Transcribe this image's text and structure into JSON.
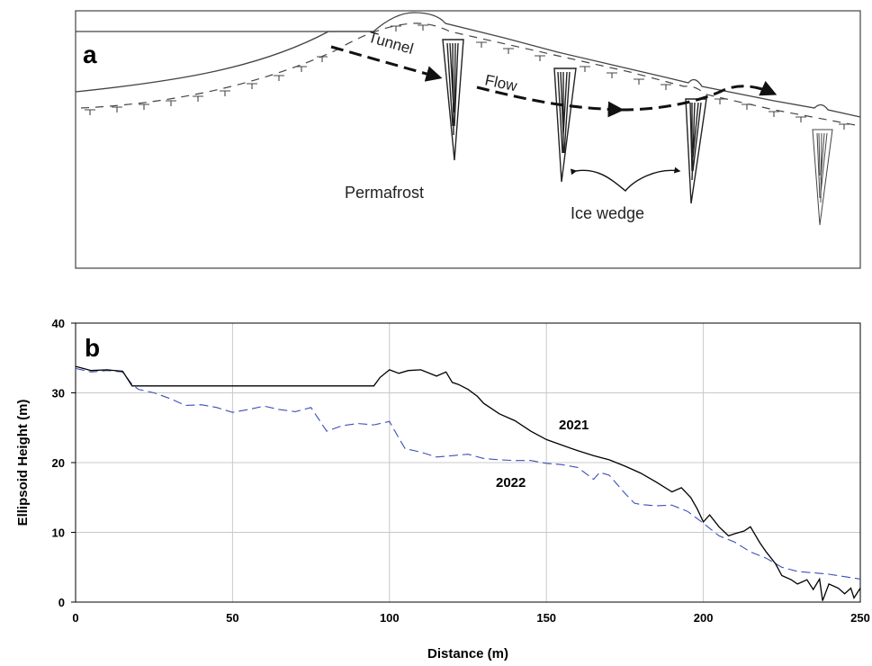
{
  "panel_a": {
    "letter": "a",
    "labels": {
      "tunnel": "Tunnel",
      "flow": "Flow",
      "permafrost": "Permafrost",
      "ice_wedge": "Ice wedge"
    }
  },
  "chart_data": {
    "type": "line",
    "panel_letter": "b",
    "xlabel": "Distance (m)",
    "ylabel": "Ellipsoid Height (m)",
    "xlim": [
      0,
      250
    ],
    "ylim": [
      0,
      40
    ],
    "xticks": [
      "0",
      "50",
      "100",
      "150",
      "200",
      "250"
    ],
    "yticks": [
      "0",
      "10",
      "20",
      "30",
      "40"
    ],
    "grid": true,
    "series": [
      {
        "name": "2021",
        "color": "#000000",
        "style": "solid",
        "x": [
          0,
          5,
          10,
          15,
          18,
          20,
          30,
          50,
          70,
          90,
          95,
          97,
          100,
          103,
          106,
          110,
          115,
          118,
          120,
          122,
          125,
          128,
          130,
          135,
          140,
          145,
          150,
          155,
          160,
          165,
          170,
          175,
          180,
          185,
          190,
          193,
          196,
          198,
          200,
          202,
          205,
          208,
          210,
          213,
          215,
          218,
          220,
          223,
          225,
          228,
          230,
          233,
          235,
          237,
          238,
          240,
          243,
          245,
          247,
          248,
          250
        ],
        "y": [
          33.8,
          33.2,
          33.3,
          33.1,
          31,
          31,
          31,
          31,
          31,
          31,
          31,
          32.2,
          33.3,
          32.8,
          33.2,
          33.3,
          32.4,
          33.0,
          31.5,
          31.2,
          30.5,
          29.5,
          28.5,
          27,
          26,
          24.5,
          23.3,
          22.5,
          21.7,
          21,
          20.4,
          19.5,
          18.5,
          17.2,
          15.8,
          16.4,
          15,
          13.4,
          11.5,
          12.5,
          10.8,
          9.5,
          9.8,
          10.2,
          10.8,
          8.5,
          7.2,
          5.5,
          3.8,
          3.2,
          2.6,
          3.2,
          1.8,
          3.3,
          0.2,
          2.6,
          2.0,
          1.2,
          2.0,
          0.6,
          2.0
        ]
      },
      {
        "name": "2022",
        "color": "#3b4fb8",
        "style": "dashed",
        "x": [
          0,
          5,
          10,
          15,
          18,
          20,
          25,
          30,
          35,
          40,
          45,
          50,
          55,
          60,
          65,
          70,
          75,
          80,
          85,
          90,
          95,
          100,
          103,
          105,
          110,
          115,
          120,
          125,
          130,
          135,
          140,
          145,
          150,
          155,
          160,
          165,
          167,
          170,
          175,
          178,
          180,
          185,
          190,
          195,
          200,
          205,
          210,
          215,
          220,
          225,
          230,
          240,
          250
        ],
        "y": [
          33.5,
          33.0,
          33.2,
          33.0,
          31.2,
          30.5,
          30.0,
          29.2,
          28.2,
          28.3,
          27.9,
          27.2,
          27.6,
          28.1,
          27.6,
          27.3,
          27.9,
          24.5,
          25.3,
          25.6,
          25.4,
          25.9,
          23.5,
          22,
          21.5,
          20.8,
          21.0,
          21.2,
          20.6,
          20.4,
          20.3,
          20.3,
          19.9,
          19.7,
          19.3,
          17.6,
          18.6,
          18.2,
          15.6,
          14.2,
          14.0,
          13.8,
          13.9,
          13.0,
          11.3,
          9.5,
          8.6,
          7.2,
          6.3,
          5.0,
          4.4,
          4.0,
          3.3
        ]
      }
    ]
  }
}
